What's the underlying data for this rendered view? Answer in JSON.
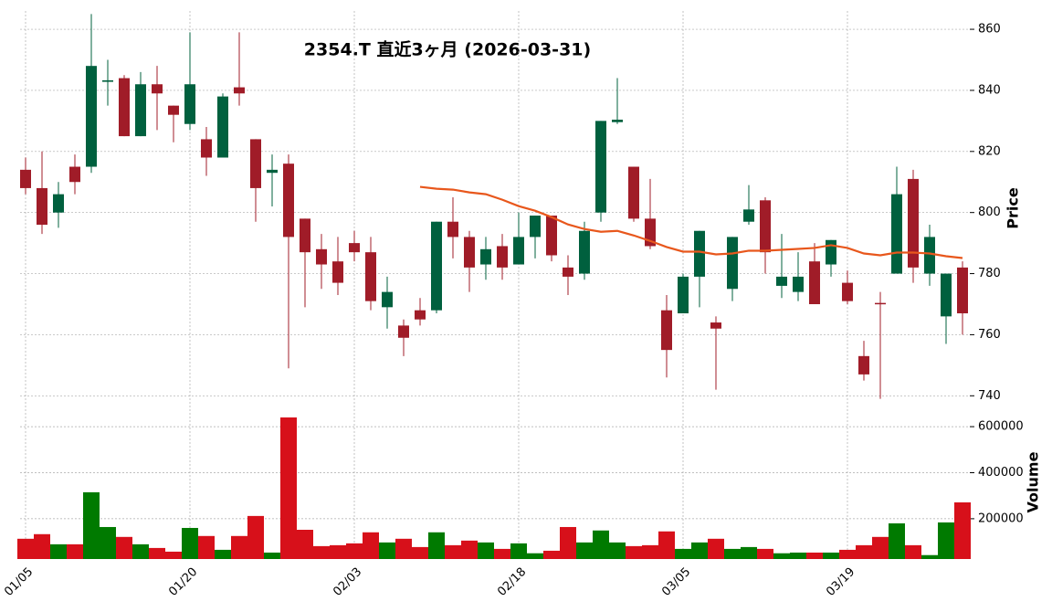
{
  "chart_data": {
    "type": "candlestick",
    "title": "2354.T  直近3ヶ月  (2026-03-31)",
    "categories": [
      "01/05",
      null,
      null,
      null,
      null,
      null,
      null,
      null,
      null,
      null,
      "01/20",
      null,
      null,
      null,
      null,
      null,
      null,
      null,
      null,
      null,
      "02/03",
      null,
      null,
      null,
      null,
      null,
      null,
      null,
      null,
      null,
      "02/18",
      null,
      null,
      null,
      null,
      null,
      null,
      null,
      null,
      null,
      "03/05",
      null,
      null,
      null,
      null,
      null,
      null,
      null,
      null,
      null,
      "03/19",
      null,
      null,
      null,
      null,
      null,
      null,
      null
    ],
    "open": [
      814,
      808,
      800,
      815,
      815,
      842.8,
      844,
      825,
      842,
      835,
      829,
      824,
      818,
      841,
      824,
      813,
      816,
      798,
      788,
      784,
      790,
      787,
      769,
      763,
      768,
      768,
      797,
      792,
      783,
      789,
      783,
      792,
      799,
      782,
      780,
      800,
      829.6,
      815,
      798,
      768,
      767,
      779,
      764,
      775,
      797,
      804,
      776,
      774,
      784,
      783,
      777,
      753,
      770.4,
      780,
      811,
      780,
      766,
      782
    ],
    "high": [
      818,
      820,
      810,
      819,
      865,
      850,
      845,
      846,
      848,
      835,
      859,
      828,
      839,
      859,
      824,
      819,
      819,
      798,
      793,
      792,
      794,
      792,
      779,
      765,
      772,
      797,
      805,
      794,
      792,
      793,
      800,
      799,
      799,
      786,
      797,
      830,
      844,
      815,
      811,
      773,
      780,
      794,
      766,
      792,
      809,
      805,
      793,
      787,
      790,
      791,
      781,
      758,
      774,
      815,
      814,
      796,
      780,
      784
    ],
    "low": [
      806,
      793,
      795,
      806,
      813,
      835,
      825,
      825,
      827,
      823,
      827,
      812,
      818,
      835,
      797,
      802,
      749,
      769,
      775,
      773,
      784,
      768,
      762,
      753,
      763,
      767,
      785,
      774,
      778,
      778,
      783,
      785,
      784,
      773,
      778,
      797,
      829,
      797,
      788,
      746,
      767,
      769,
      742,
      771,
      796,
      780,
      772,
      771,
      770,
      779,
      770,
      745,
      739,
      780,
      777,
      776,
      757,
      760
    ],
    "close": [
      808,
      796,
      806,
      810,
      848,
      843.3,
      825,
      842,
      839,
      832,
      842,
      818,
      838,
      839,
      808,
      814,
      792,
      787,
      783,
      777,
      787,
      771,
      774,
      759,
      765,
      797,
      792,
      782,
      788,
      782,
      792,
      799,
      786,
      779,
      794,
      830,
      830.4,
      798,
      789,
      755,
      779,
      794,
      762,
      792,
      801,
      787,
      779,
      779,
      770,
      791,
      771,
      747,
      770,
      806,
      782,
      792,
      780,
      767
    ],
    "up_color": "#00603e",
    "down_color": "#a01c28",
    "ylabel": "Price",
    "ylim": [
      736.5,
      866
    ],
    "yticks": [
      740,
      760,
      780,
      800,
      820,
      840,
      860
    ],
    "grid": true,
    "ma": {
      "color": "#e8571c",
      "values": [
        null,
        null,
        null,
        null,
        null,
        null,
        null,
        null,
        null,
        null,
        null,
        null,
        null,
        null,
        null,
        null,
        null,
        null,
        null,
        null,
        null,
        null,
        null,
        null,
        808.4,
        807.8,
        807.5,
        806.6,
        806,
        804.2,
        802.1,
        800.6,
        798.5,
        796.1,
        794.6,
        793.7,
        794,
        792.5,
        790.7,
        788.7,
        787.2,
        787.2,
        786.3,
        786.6,
        787.5,
        787.5,
        787.8,
        788.1,
        788.4,
        789.3,
        788.4,
        786.6,
        786,
        786.9,
        786.9,
        786.6,
        785.7,
        785.1
      ]
    },
    "volume": {
      "ylabel": "Volume",
      "ylim": [
        25000,
        648000
      ],
      "yticks": [
        200000,
        400000,
        600000
      ],
      "up_color": "#007a00",
      "down_color": "#d7101a",
      "values": [
        113000,
        133000,
        89000,
        89000,
        315000,
        164000,
        121000,
        89000,
        73000,
        57000,
        160000,
        125000,
        65000,
        125000,
        212000,
        53000,
        640000,
        152000,
        81000,
        85000,
        93000,
        141000,
        97000,
        113000,
        77000,
        141000,
        85000,
        105000,
        97000,
        69000,
        93000,
        50000,
        61000,
        164000,
        97000,
        149000,
        97000,
        81000,
        85000,
        145000,
        69000,
        97000,
        113000,
        69000,
        77000,
        69000,
        50000,
        53000,
        53000,
        53000,
        65000,
        85000,
        121000,
        180000,
        85000,
        42000,
        184000,
        271000
      ]
    }
  }
}
